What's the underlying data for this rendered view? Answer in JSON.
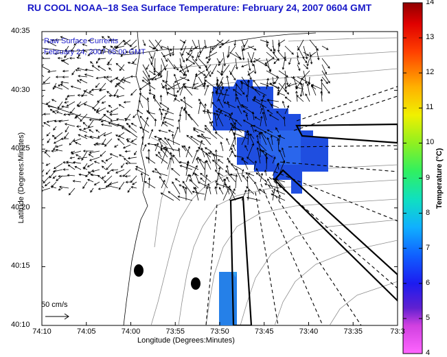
{
  "title": "RU COOL  NOAA–18  Sea Surface Temperature:  February 24, 2007 0604 GMT",
  "legend": {
    "line1": "Raw Surface Currents",
    "line2": "February 24, 2007 05:00 GMT"
  },
  "scale_label": "50 cm/s",
  "axes": {
    "xlabel": "Longitude (Degrees:Minutes)",
    "ylabel": "Latitude (Degrees:Minutes)",
    "xticks": [
      "74:10",
      "74:05",
      "74:00",
      "73:55",
      "73:50",
      "73:45",
      "73:40",
      "73:35",
      "73:3"
    ],
    "yticks": [
      "40:35",
      "40:30",
      "40:25",
      "40:20",
      "40:15",
      "40:10"
    ]
  },
  "colorbar": {
    "title": "Temperature (°C)",
    "ticks": [
      "14",
      "13",
      "12",
      "11",
      "10",
      "9",
      "8",
      "7",
      "6",
      "5",
      "4"
    ],
    "min": 4,
    "max": 14
  },
  "colors": {
    "title": "#1818c8",
    "sst_patch": "#1f52e6",
    "sst_patch_light": "#2a7fe8"
  }
}
